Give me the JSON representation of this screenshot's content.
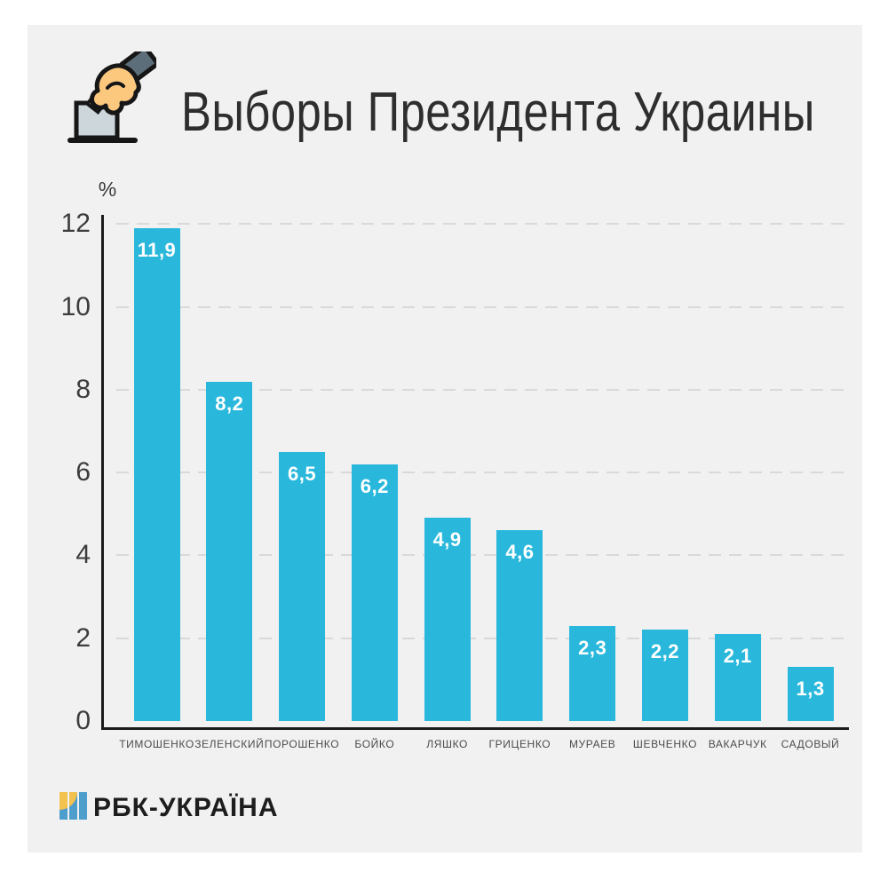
{
  "header": {
    "title": "Выборы Президента Украины"
  },
  "chart_data": {
    "type": "bar",
    "title": "Выборы Президента Украины",
    "xlabel": "",
    "ylabel": "%",
    "ylim": [
      0,
      12
    ],
    "yticks": [
      0,
      2,
      4,
      6,
      8,
      10,
      12
    ],
    "grid": "horizontal-dashed",
    "legend": "none",
    "categories": [
      "ТИМОШЕНКО",
      "ЗЕЛЕНСКИЙ",
      "ПОРОШЕНКО",
      "БОЙКО",
      "ЛЯШКО",
      "ГРИЦЕНКО",
      "МУРАЕВ",
      "ШЕВЧЕНКО",
      "ВАКАРЧУК",
      "САДОВЫЙ"
    ],
    "values": [
      11.9,
      8.2,
      6.5,
      6.2,
      4.9,
      4.6,
      2.3,
      2.2,
      2.1,
      1.3
    ],
    "value_labels": [
      "11,9",
      "8,2",
      "6,5",
      "6,2",
      "4,9",
      "4,6",
      "2,3",
      "2,2",
      "2,1",
      "1,3"
    ]
  },
  "footer": {
    "logo_text": "РБК-УКРАЇНА"
  },
  "colors": {
    "background": "#ffffff",
    "panel": "#f1f1f2",
    "bar": "#29b8dc",
    "value_text": "#ffffff",
    "axis": "#1b1b1b",
    "gridline": "#d9d9d9",
    "tick_text": "#3c3c3c",
    "category_text": "#4b4b4b",
    "title_text": "#2e2e2e",
    "logo_yellow": "#f2c14e",
    "logo_blue": "#4d9dcd",
    "icon_hand": "#fbc87e",
    "icon_sleeve": "#5b6e79",
    "icon_box": "#ccd6db"
  }
}
